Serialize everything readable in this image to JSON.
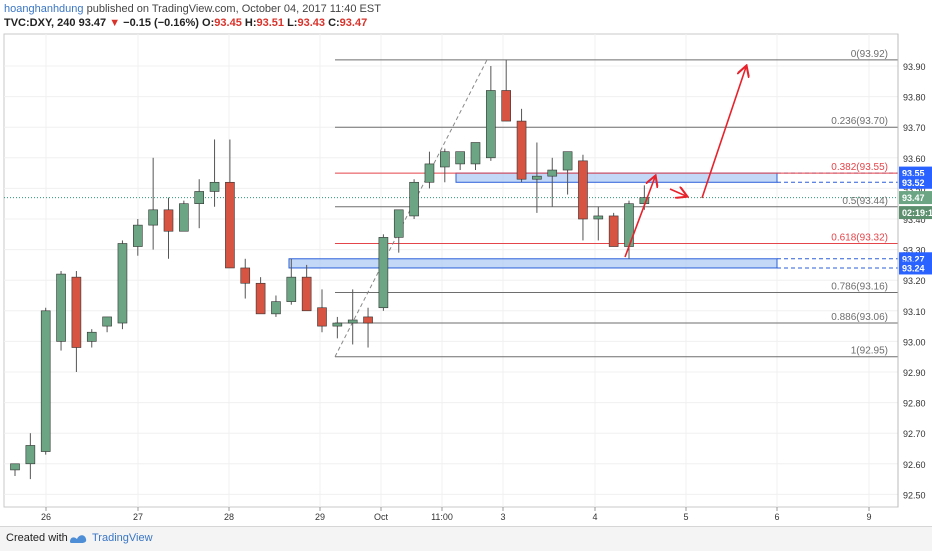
{
  "header": {
    "author": "hoanghanhdung",
    "published_text": " published on TradingView.com, October 04, 2017 11:40 EST",
    "symbol": "TVC:DXY, 240",
    "last": "93.47",
    "down_arrow": "▼",
    "change": "−0.15 (−0.16%)",
    "open_label": "O:",
    "open": "93.45",
    "high_label": "H:",
    "high": "93.51",
    "low_label": "L:",
    "low": "93.43",
    "close_label": "C:",
    "close": "93.47"
  },
  "footer": {
    "created_with": "Created with",
    "brand": "TradingView"
  },
  "colors": {
    "up": "#6ba583",
    "down": "#d75442",
    "grid": "#f0f0f0",
    "fib_gray": "#6e6e6e",
    "fib_red": "#e4454a",
    "zone_fill": "#a9c8f3",
    "zone_stroke": "#2b5fd9",
    "arrow": "#e8222b",
    "label_blue": "#2962ff"
  },
  "chart_data": {
    "type": "candlestick",
    "y_axis_ticks": [
      "93.90",
      "93.80",
      "93.70",
      "93.60",
      "93.50",
      "93.40",
      "93.30",
      "93.20",
      "93.10",
      "93.00",
      "92.90",
      "92.80",
      "92.70",
      "92.60",
      "92.50"
    ],
    "x_axis_ticks": [
      "26",
      "27",
      "28",
      "29",
      "Oct",
      "11:00",
      "3",
      "4",
      "5",
      "6",
      "9"
    ],
    "candles": [
      {
        "o": 92.58,
        "h": 92.6,
        "l": 92.56,
        "c": 92.6
      },
      {
        "o": 92.6,
        "h": 92.7,
        "l": 92.55,
        "c": 92.66
      },
      {
        "o": 92.64,
        "h": 93.11,
        "l": 92.63,
        "c": 93.1
      },
      {
        "o": 93.0,
        "h": 93.23,
        "l": 92.97,
        "c": 93.22
      },
      {
        "o": 93.21,
        "h": 93.23,
        "l": 92.9,
        "c": 92.98
      },
      {
        "o": 93.0,
        "h": 93.04,
        "l": 92.98,
        "c": 93.03
      },
      {
        "o": 93.05,
        "h": 93.08,
        "l": 93.03,
        "c": 93.08
      },
      {
        "o": 93.06,
        "h": 93.33,
        "l": 93.04,
        "c": 93.32
      },
      {
        "o": 93.31,
        "h": 93.4,
        "l": 93.28,
        "c": 93.38
      },
      {
        "o": 93.38,
        "h": 93.6,
        "l": 93.3,
        "c": 93.43
      },
      {
        "o": 93.43,
        "h": 93.47,
        "l": 93.27,
        "c": 93.36
      },
      {
        "o": 93.36,
        "h": 93.46,
        "l": 93.36,
        "c": 93.45
      },
      {
        "o": 93.45,
        "h": 93.53,
        "l": 93.37,
        "c": 93.49
      },
      {
        "o": 93.49,
        "h": 93.66,
        "l": 93.44,
        "c": 93.52
      },
      {
        "o": 93.52,
        "h": 93.66,
        "l": 93.24,
        "c": 93.24
      },
      {
        "o": 93.24,
        "h": 93.27,
        "l": 93.14,
        "c": 93.19
      },
      {
        "o": 93.19,
        "h": 93.21,
        "l": 93.09,
        "c": 93.09
      },
      {
        "o": 93.09,
        "h": 93.15,
        "l": 93.08,
        "c": 93.13
      },
      {
        "o": 93.13,
        "h": 93.27,
        "l": 93.12,
        "c": 93.21
      },
      {
        "o": 93.21,
        "h": 93.25,
        "l": 93.1,
        "c": 93.1
      },
      {
        "o": 93.11,
        "h": 93.17,
        "l": 93.03,
        "c": 93.05
      },
      {
        "o": 93.05,
        "h": 93.08,
        "l": 93.01,
        "c": 93.06
      },
      {
        "o": 93.06,
        "h": 93.17,
        "l": 92.99,
        "c": 93.07
      },
      {
        "o": 93.08,
        "h": 93.11,
        "l": 92.98,
        "c": 93.06
      },
      {
        "o": 93.11,
        "h": 93.35,
        "l": 93.1,
        "c": 93.34
      },
      {
        "o": 93.34,
        "h": 93.43,
        "l": 93.29,
        "c": 93.43
      },
      {
        "o": 93.41,
        "h": 93.53,
        "l": 93.4,
        "c": 93.52
      },
      {
        "o": 93.52,
        "h": 93.62,
        "l": 93.5,
        "c": 93.58
      },
      {
        "o": 93.57,
        "h": 93.63,
        "l": 93.52,
        "c": 93.62
      },
      {
        "o": 93.58,
        "h": 93.62,
        "l": 93.56,
        "c": 93.62
      },
      {
        "o": 93.58,
        "h": 93.64,
        "l": 93.56,
        "c": 93.65
      },
      {
        "o": 93.6,
        "h": 93.9,
        "l": 93.59,
        "c": 93.82
      },
      {
        "o": 93.82,
        "h": 93.92,
        "l": 93.72,
        "c": 93.72
      },
      {
        "o": 93.72,
        "h": 93.76,
        "l": 93.52,
        "c": 93.53
      },
      {
        "o": 93.53,
        "h": 93.65,
        "l": 93.42,
        "c": 93.54
      },
      {
        "o": 93.54,
        "h": 93.6,
        "l": 93.44,
        "c": 93.56
      },
      {
        "o": 93.56,
        "h": 93.62,
        "l": 93.48,
        "c": 93.62
      },
      {
        "o": 93.59,
        "h": 93.61,
        "l": 93.33,
        "c": 93.4
      },
      {
        "o": 93.4,
        "h": 93.44,
        "l": 93.33,
        "c": 93.41
      },
      {
        "o": 93.41,
        "h": 93.42,
        "l": 93.31,
        "c": 93.31
      },
      {
        "o": 93.31,
        "h": 93.46,
        "l": 93.27,
        "c": 93.45
      },
      {
        "o": 93.45,
        "h": 93.51,
        "l": 93.43,
        "c": 93.47
      }
    ],
    "fib_levels": [
      {
        "ratio": "0",
        "price": 93.92,
        "label": "0(93.92)",
        "color": "gray"
      },
      {
        "ratio": "0.236",
        "price": 93.7,
        "label": "0.236(93.70)",
        "color": "gray"
      },
      {
        "ratio": "0.382",
        "price": 93.55,
        "label": "0.382(93.55)",
        "color": "red"
      },
      {
        "ratio": "0.5",
        "price": 93.44,
        "label": "0.5(93.44)",
        "color": "gray"
      },
      {
        "ratio": "0.618",
        "price": 93.32,
        "label": "0.618(93.32)",
        "color": "red"
      },
      {
        "ratio": "0.786",
        "price": 93.16,
        "label": "0.786(93.16)",
        "color": "gray"
      },
      {
        "ratio": "0.886",
        "price": 93.06,
        "label": "0.886(93.06)",
        "color": "gray"
      },
      {
        "ratio": "1",
        "price": 92.95,
        "label": "1(92.95)",
        "color": "gray"
      }
    ],
    "zones": [
      {
        "top": 93.55,
        "bottom": 93.52
      },
      {
        "top": 93.27,
        "bottom": 93.24
      }
    ],
    "price_labels": [
      {
        "text": "93.55",
        "price": 93.55,
        "kind": "zone"
      },
      {
        "text": "93.52",
        "price": 93.52,
        "kind": "zone"
      },
      {
        "text": "93.47",
        "price": 93.47,
        "kind": "last"
      },
      {
        "text": "02:19:1",
        "price": 93.42,
        "kind": "countdown"
      },
      {
        "text": "93.27",
        "price": 93.27,
        "kind": "zone"
      },
      {
        "text": "93.24",
        "price": 93.24,
        "kind": "zone"
      }
    ]
  }
}
